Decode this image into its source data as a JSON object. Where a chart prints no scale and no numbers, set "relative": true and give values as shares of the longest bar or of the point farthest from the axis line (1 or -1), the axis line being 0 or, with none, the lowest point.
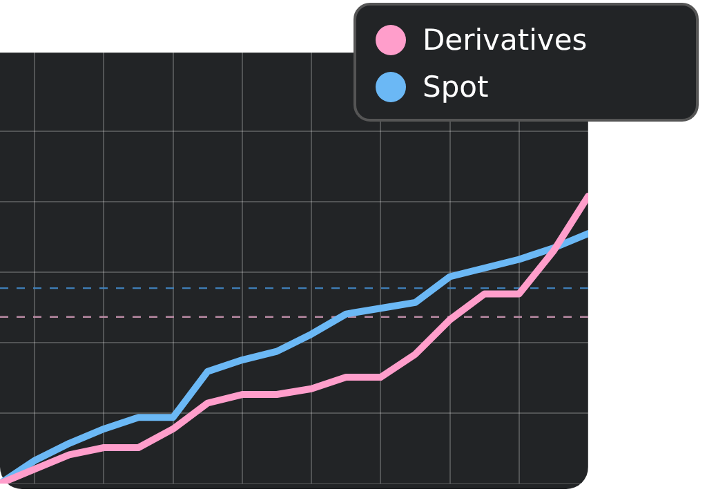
{
  "chart_data": {
    "type": "line",
    "relative": true,
    "categories": [
      null,
      null,
      null,
      null,
      null,
      null,
      null,
      null,
      null,
      null,
      null,
      null,
      null,
      null,
      null,
      null,
      null,
      null
    ],
    "series": [
      {
        "name": "Derivatives",
        "color": "#ff9ecb",
        "values": [
          0,
          0.05,
          0.1,
          0.125,
          0.125,
          0.19,
          0.28,
          0.31,
          0.31,
          0.33,
          0.37,
          0.37,
          0.45,
          0.57,
          0.66,
          0.66,
          0.81,
          1
        ]
      },
      {
        "name": "Spot",
        "color": "#6bb8f5",
        "values": [
          0,
          0.08,
          0.14,
          0.19,
          0.23,
          0.23,
          0.39,
          0.43,
          0.46,
          0.52,
          0.59,
          0.61,
          0.63,
          0.72,
          0.75,
          0.78,
          0.82,
          0.87
        ]
      }
    ],
    "ref_lines": [
      {
        "axis": "y",
        "value": 0.68,
        "color": "#3f7fb8",
        "line_style": "dashed"
      },
      {
        "axis": "y",
        "value": 0.58,
        "color": "#b98aa3",
        "line_style": "dashed"
      }
    ],
    "grid": true,
    "legend": "top right",
    "marker": "none",
    "line_style": "solid"
  }
}
